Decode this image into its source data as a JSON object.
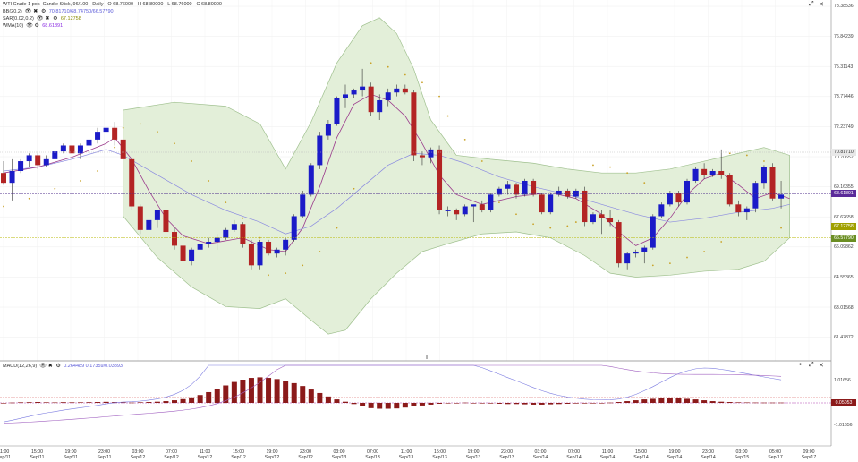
{
  "header": {
    "title": "WTI Crude 1 pos",
    "info": "Candle Stick, 96/100 - Daily - O 68.76000 - H 68.80000 - L 68.76000 - C 68.80000"
  },
  "indicators": [
    {
      "name": "BB(20,2)",
      "values": "70.81710/68.74750/66.57790",
      "color": "#5a5ad8"
    },
    {
      "name": "SAR(0.02,0.2)",
      "values": "67.12758",
      "color": "#8a8a00"
    },
    {
      "name": "WMA(10)",
      "values": "68.61891",
      "color": "#8a2be2"
    }
  ],
  "macd_legend": {
    "name": "MACD(12,26,9)",
    "values": "0.264489 0.17359/0.03893"
  },
  "price_axis": {
    "labels": [
      "78.38536",
      "76.84239",
      "75.31143",
      "73.77446",
      "72.23749",
      "70.70652",
      "69.16355",
      "67.62658",
      "66.09862",
      "64.55365",
      "63.01568",
      "61.47872"
    ],
    "current": "68.61891",
    "bb_upper": "70.81710",
    "sar": "67.12758",
    "bb_lower": "66.57790"
  },
  "macd_axis": {
    "labels": [
      "1.01656",
      "-1.01656"
    ],
    "current": "0.05053"
  },
  "time_axis": [
    {
      "t": "11:00",
      "d": "Sep/11"
    },
    {
      "t": "15:00",
      "d": "Sep/11"
    },
    {
      "t": "19:00",
      "d": "Sep/11"
    },
    {
      "t": "23:00",
      "d": "Sep/11"
    },
    {
      "t": "03:00",
      "d": "Sep/12"
    },
    {
      "t": "07:00",
      "d": "Sep/12"
    },
    {
      "t": "11:00",
      "d": "Sep/12"
    },
    {
      "t": "15:00",
      "d": "Sep/12"
    },
    {
      "t": "19:00",
      "d": "Sep/12"
    },
    {
      "t": "23:00",
      "d": "Sep/12"
    },
    {
      "t": "03:00",
      "d": "Sep/13"
    },
    {
      "t": "07:00",
      "d": "Sep/13"
    },
    {
      "t": "11:00",
      "d": "Sep/13"
    },
    {
      "t": "15:00",
      "d": "Sep/13"
    },
    {
      "t": "19:00",
      "d": "Sep/13"
    },
    {
      "t": "23:00",
      "d": "Sep/13"
    },
    {
      "t": "03:00",
      "d": "Sep/14"
    },
    {
      "t": "07:00",
      "d": "Sep/14"
    },
    {
      "t": "11:00",
      "d": "Sep/14"
    },
    {
      "t": "15:00",
      "d": "Sep/14"
    },
    {
      "t": "19:00",
      "d": "Sep/14"
    },
    {
      "t": "23:00",
      "d": "Sep/14"
    },
    {
      "t": "03:00",
      "d": "Sep/15"
    },
    {
      "t": "05:00",
      "d": "Sep/17"
    },
    {
      "t": "09:00",
      "d": "Sep/17"
    }
  ],
  "colors": {
    "bull": "#1b1bc8",
    "bear": "#b32424",
    "bb_fill": "#e3efd9",
    "bb_line": "#9fc08e",
    "wma": "#9b3b8c",
    "mid": "#8a8ae0",
    "sar": "#c9a227",
    "macd_hist": "#8b1a1a"
  },
  "chart_data": {
    "type": "candlestick",
    "price_range": [
      61.47872,
      78.38536
    ],
    "candles": [
      [
        69.9,
        70.5,
        69.3,
        69.4
      ],
      [
        69.4,
        70.6,
        68.5,
        70.0
      ],
      [
        70.0,
        70.6,
        69.9,
        70.5
      ],
      [
        70.5,
        70.9,
        70.2,
        70.8
      ],
      [
        70.8,
        71.0,
        70.1,
        70.3
      ],
      [
        70.3,
        70.8,
        70.2,
        70.6
      ],
      [
        70.6,
        71.1,
        70.5,
        71.0
      ],
      [
        71.0,
        71.4,
        70.9,
        71.3
      ],
      [
        71.3,
        71.7,
        70.9,
        70.9
      ],
      [
        70.9,
        71.4,
        70.6,
        71.3
      ],
      [
        71.3,
        71.7,
        71.2,
        71.6
      ],
      [
        71.6,
        72.2,
        71.4,
        72.0
      ],
      [
        72.0,
        72.4,
        71.8,
        72.2
      ],
      [
        72.2,
        72.5,
        71.3,
        71.6
      ],
      [
        71.6,
        71.8,
        70.5,
        70.6
      ],
      [
        70.6,
        70.7,
        68.0,
        68.2
      ],
      [
        68.2,
        68.3,
        66.8,
        67.0
      ],
      [
        67.0,
        67.6,
        66.9,
        67.5
      ],
      [
        67.5,
        68.0,
        67.1,
        68.0
      ],
      [
        68.0,
        68.1,
        66.8,
        66.9
      ],
      [
        66.9,
        67.1,
        66.0,
        66.2
      ],
      [
        66.2,
        66.5,
        65.2,
        65.4
      ],
      [
        65.4,
        66.1,
        65.2,
        66.0
      ],
      [
        66.0,
        66.5,
        65.6,
        66.3
      ],
      [
        66.3,
        66.6,
        66.1,
        66.4
      ],
      [
        66.4,
        66.8,
        66.0,
        66.6
      ],
      [
        66.6,
        67.1,
        66.5,
        67.0
      ],
      [
        67.0,
        67.5,
        66.9,
        67.3
      ],
      [
        67.3,
        67.4,
        66.1,
        66.3
      ],
      [
        66.3,
        66.5,
        65.0,
        65.2
      ],
      [
        65.2,
        66.5,
        65.0,
        66.4
      ],
      [
        66.4,
        66.5,
        65.7,
        65.8
      ],
      [
        65.8,
        66.1,
        65.6,
        66.0
      ],
      [
        66.0,
        66.6,
        65.7,
        66.5
      ],
      [
        66.5,
        67.8,
        66.4,
        67.7
      ],
      [
        67.7,
        69.0,
        67.6,
        68.8
      ],
      [
        68.8,
        70.4,
        68.7,
        70.3
      ],
      [
        70.3,
        72.0,
        70.1,
        71.8
      ],
      [
        71.8,
        72.6,
        71.6,
        72.4
      ],
      [
        72.4,
        73.8,
        72.3,
        73.7
      ],
      [
        73.7,
        74.4,
        73.2,
        73.9
      ],
      [
        73.9,
        74.2,
        73.7,
        74.1
      ],
      [
        74.1,
        75.2,
        73.8,
        74.3
      ],
      [
        74.3,
        74.5,
        72.8,
        73.0
      ],
      [
        73.0,
        73.9,
        72.6,
        73.6
      ],
      [
        73.6,
        74.2,
        73.3,
        74.0
      ],
      [
        74.0,
        74.4,
        73.8,
        74.2
      ],
      [
        74.2,
        74.4,
        73.9,
        74.0
      ],
      [
        74.0,
        74.1,
        70.5,
        70.8
      ],
      [
        70.8,
        71.0,
        70.3,
        70.7
      ],
      [
        70.7,
        71.2,
        70.4,
        71.1
      ],
      [
        71.1,
        71.3,
        67.8,
        68.0
      ],
      [
        68.0,
        68.2,
        67.7,
        68.0
      ],
      [
        68.0,
        68.1,
        67.5,
        67.8
      ],
      [
        67.8,
        68.3,
        67.7,
        68.2
      ],
      [
        68.2,
        68.3,
        67.4,
        68.3
      ],
      [
        68.3,
        68.5,
        67.9,
        68.0
      ],
      [
        68.0,
        68.9,
        67.9,
        68.8
      ],
      [
        68.8,
        69.2,
        68.7,
        69.1
      ],
      [
        69.1,
        69.5,
        68.8,
        69.3
      ],
      [
        69.3,
        69.4,
        68.6,
        68.8
      ],
      [
        68.8,
        69.6,
        68.7,
        69.5
      ],
      [
        69.5,
        69.6,
        68.7,
        68.8
      ],
      [
        68.8,
        68.9,
        67.8,
        67.9
      ],
      [
        67.9,
        68.9,
        67.8,
        68.8
      ],
      [
        68.8,
        69.2,
        68.7,
        69.0
      ],
      [
        69.0,
        69.1,
        68.6,
        68.7
      ],
      [
        68.7,
        69.1,
        68.6,
        69.0
      ],
      [
        69.0,
        69.2,
        67.2,
        67.4
      ],
      [
        67.4,
        67.9,
        67.3,
        67.8
      ],
      [
        67.8,
        68.0,
        66.8,
        67.6
      ],
      [
        67.6,
        68.0,
        67.2,
        67.4
      ],
      [
        67.4,
        67.5,
        65.1,
        65.3
      ],
      [
        65.3,
        65.9,
        65.0,
        65.8
      ],
      [
        65.8,
        66.0,
        65.6,
        65.9
      ],
      [
        65.9,
        66.2,
        65.3,
        66.1
      ],
      [
        66.1,
        67.8,
        66.0,
        67.7
      ],
      [
        67.7,
        68.4,
        67.6,
        68.3
      ],
      [
        68.3,
        69.0,
        68.2,
        68.9
      ],
      [
        68.9,
        69.0,
        68.2,
        68.4
      ],
      [
        68.4,
        69.6,
        68.3,
        69.5
      ],
      [
        69.5,
        70.2,
        69.4,
        70.1
      ],
      [
        70.1,
        70.4,
        69.6,
        69.8
      ],
      [
        69.8,
        70.1,
        69.7,
        70.0
      ],
      [
        70.0,
        71.1,
        69.6,
        69.8
      ],
      [
        69.8,
        69.9,
        68.2,
        68.3
      ],
      [
        68.3,
        68.5,
        67.7,
        67.9
      ],
      [
        67.9,
        68.2,
        67.5,
        68.1
      ],
      [
        68.1,
        69.5,
        67.9,
        69.4
      ],
      [
        69.4,
        70.3,
        69.1,
        70.2
      ],
      [
        70.2,
        70.4,
        68.5,
        68.6
      ],
      [
        68.6,
        69.5,
        68.1,
        68.8
      ]
    ],
    "sar": [
      [
        0,
        68.2
      ],
      [
        3,
        68.6
      ],
      [
        6,
        69.1
      ],
      [
        9,
        69.5
      ],
      [
        11,
        70.0
      ],
      [
        13,
        71.2
      ],
      [
        14,
        72.2
      ],
      [
        16,
        72.4
      ],
      [
        18,
        72.0
      ],
      [
        20,
        71.4
      ],
      [
        22,
        70.5
      ],
      [
        24,
        69.5
      ],
      [
        26,
        68.4
      ],
      [
        28,
        67.6
      ],
      [
        30,
        66.6
      ],
      [
        31,
        64.7
      ],
      [
        33,
        64.8
      ],
      [
        35,
        65.2
      ],
      [
        37,
        65.9
      ],
      [
        39,
        67.1
      ],
      [
        41,
        69.1
      ],
      [
        43,
        75.5
      ],
      [
        45,
        75.3
      ],
      [
        47,
        74.9
      ],
      [
        49,
        74.5
      ],
      [
        51,
        73.8
      ],
      [
        52,
        72.8
      ],
      [
        54,
        71.6
      ],
      [
        56,
        70.5
      ],
      [
        58,
        68.4
      ],
      [
        60,
        67.8
      ],
      [
        62,
        67.3
      ],
      [
        64,
        67.1
      ],
      [
        66,
        67.2
      ],
      [
        67,
        67.4
      ],
      [
        69,
        70.3
      ],
      [
        71,
        70.2
      ],
      [
        73,
        69.9
      ],
      [
        75,
        69.4
      ],
      [
        76,
        65.2
      ],
      [
        78,
        65.3
      ],
      [
        80,
        65.6
      ],
      [
        82,
        65.9
      ],
      [
        84,
        66.4
      ],
      [
        85,
        70.9
      ],
      [
        87,
        70.8
      ],
      [
        89,
        70.5
      ],
      [
        91,
        67.1
      ]
    ],
    "bb_upper": [
      [
        14,
        73.1
      ],
      [
        20,
        73.5
      ],
      [
        26,
        73.3
      ],
      [
        30,
        72.4
      ],
      [
        33,
        70.1
      ],
      [
        36,
        72.5
      ],
      [
        39,
        75.5
      ],
      [
        42,
        77.4
      ],
      [
        44,
        77.8
      ],
      [
        46,
        77.0
      ],
      [
        48,
        75.2
      ],
      [
        50,
        72.6
      ],
      [
        53,
        70.8
      ],
      [
        57,
        70.6
      ],
      [
        62,
        70.4
      ],
      [
        66,
        70.1
      ],
      [
        70,
        69.9
      ],
      [
        74,
        69.9
      ],
      [
        78,
        70.1
      ],
      [
        82,
        70.5
      ],
      [
        86,
        70.9
      ],
      [
        89,
        71.2
      ],
      [
        92,
        70.8
      ]
    ],
    "bb_lower": [
      [
        14,
        67.7
      ],
      [
        18,
        65.6
      ],
      [
        22,
        64.1
      ],
      [
        26,
        63.1
      ],
      [
        30,
        63.0
      ],
      [
        33,
        63.5
      ],
      [
        36,
        62.4
      ],
      [
        38,
        61.7
      ],
      [
        40,
        61.9
      ],
      [
        43,
        63.5
      ],
      [
        46,
        64.8
      ],
      [
        49,
        65.9
      ],
      [
        52,
        66.3
      ],
      [
        56,
        66.8
      ],
      [
        60,
        66.9
      ],
      [
        64,
        66.6
      ],
      [
        68,
        65.7
      ],
      [
        71,
        64.8
      ],
      [
        74,
        64.6
      ],
      [
        78,
        64.7
      ],
      [
        82,
        64.9
      ],
      [
        86,
        65.0
      ],
      [
        89,
        65.4
      ],
      [
        92,
        66.6
      ]
    ],
    "bb_mid": [
      [
        0,
        70.0
      ],
      [
        4,
        70.2
      ],
      [
        8,
        70.6
      ],
      [
        12,
        71.1
      ],
      [
        14,
        70.8
      ],
      [
        18,
        69.8
      ],
      [
        22,
        68.8
      ],
      [
        26,
        68.0
      ],
      [
        30,
        67.4
      ],
      [
        33,
        66.8
      ],
      [
        36,
        67.2
      ],
      [
        39,
        68.1
      ],
      [
        42,
        69.2
      ],
      [
        45,
        70.3
      ],
      [
        48,
        70.9
      ],
      [
        51,
        70.8
      ],
      [
        54,
        70.4
      ],
      [
        58,
        69.7
      ],
      [
        62,
        69.2
      ],
      [
        66,
        68.8
      ],
      [
        70,
        68.3
      ],
      [
        74,
        67.8
      ],
      [
        78,
        67.4
      ],
      [
        82,
        67.6
      ],
      [
        86,
        67.9
      ],
      [
        90,
        68.1
      ],
      [
        92,
        68.3
      ]
    ],
    "wma": [
      [
        0,
        69.9
      ],
      [
        4,
        70.2
      ],
      [
        8,
        70.7
      ],
      [
        12,
        71.4
      ],
      [
        13,
        71.7
      ],
      [
        15,
        70.6
      ],
      [
        17,
        69.0
      ],
      [
        19,
        67.6
      ],
      [
        21,
        66.7
      ],
      [
        24,
        66.3
      ],
      [
        28,
        66.6
      ],
      [
        31,
        66.0
      ],
      [
        33,
        65.9
      ],
      [
        35,
        67.1
      ],
      [
        37,
        69.2
      ],
      [
        39,
        71.7
      ],
      [
        41,
        73.4
      ],
      [
        43,
        73.9
      ],
      [
        45,
        73.6
      ],
      [
        47,
        72.8
      ],
      [
        49,
        71.4
      ],
      [
        51,
        69.8
      ],
      [
        53,
        68.8
      ],
      [
        56,
        68.3
      ],
      [
        60,
        68.7
      ],
      [
        64,
        68.9
      ],
      [
        67,
        68.6
      ],
      [
        70,
        67.8
      ],
      [
        72,
        66.9
      ],
      [
        74,
        66.2
      ],
      [
        76,
        66.6
      ],
      [
        78,
        67.6
      ],
      [
        80,
        68.8
      ],
      [
        82,
        69.6
      ],
      [
        84,
        69.9
      ],
      [
        86,
        69.3
      ],
      [
        88,
        68.6
      ],
      [
        90,
        68.9
      ],
      [
        92,
        68.6
      ]
    ],
    "macd_hist": [
      0,
      0.05,
      0.1,
      0.12,
      0.15,
      0.1,
      0.08,
      0.12,
      0.1,
      0.1,
      0.12,
      0.15,
      0.18,
      0.15,
      0.1,
      0.05,
      0.1,
      0.15,
      0.2,
      0.3,
      0.45,
      0.65,
      0.95,
      1.35,
      1.85,
      2.4,
      3.0,
      3.6,
      4.0,
      4.3,
      4.4,
      4.3,
      4.1,
      3.8,
      3.4,
      2.9,
      2.3,
      1.7,
      1.1,
      0.6,
      0.2,
      -0.2,
      -0.6,
      -0.9,
      -1.0,
      -1.0,
      -0.95,
      -0.8,
      -0.6,
      -0.45,
      -0.3,
      -0.15,
      -0.05,
      0,
      0.05,
      0,
      -0.05,
      -0.1,
      -0.15,
      -0.2,
      -0.2,
      -0.25,
      -0.3,
      -0.3,
      -0.25,
      -0.2,
      -0.15,
      -0.1,
      -0.1,
      -0.05,
      0,
      0.05,
      0.15,
      0.3,
      0.45,
      0.6,
      0.7,
      0.8,
      0.85,
      0.8,
      0.7,
      0.6,
      0.45,
      0.3,
      0.2,
      0.15,
      0.1,
      0.08,
      0.06,
      0.05,
      0.05,
      0.05
    ]
  }
}
